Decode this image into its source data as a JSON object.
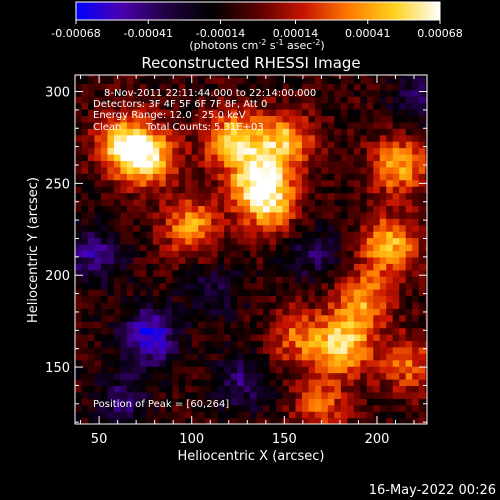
{
  "colorbar": {
    "ticks": [
      "-0.00068",
      "-0.00041",
      "-0.00014",
      "0.00014",
      "0.00041",
      "0.00068"
    ],
    "tick_values": [
      -0.00068,
      -0.00041,
      -0.00014,
      0.00014,
      0.00041,
      0.00068
    ],
    "range": [
      -0.00068,
      0.00068
    ],
    "unit_text": "(photons cm",
    "unit_sup1": "-2",
    "unit_mid": " s",
    "unit_sup2": "-1",
    "unit_mid2": " asec",
    "unit_sup3": "-2",
    "unit_end": ")",
    "colors": [
      "#0000ff",
      "#4b00b0",
      "#200040",
      "#000000",
      "#5a0000",
      "#c81400",
      "#ff7a00",
      "#ffd21e",
      "#ffffff"
    ]
  },
  "chart_data": {
    "type": "heatmap",
    "title": "Reconstructed RHESSI Image",
    "xlabel": "Heliocentric X (arcsec)",
    "ylabel": "Heliocentric Y (arcsec)",
    "xlim": [
      37,
      227
    ],
    "ylim": [
      119,
      309
    ],
    "x_ticks": [
      50,
      100,
      150,
      200
    ],
    "y_ticks": [
      150,
      200,
      250,
      300
    ],
    "value_range": [
      -0.00068,
      0.00068
    ],
    "peak_position": [
      60,
      264
    ],
    "bright_regions": [
      {
        "x": 75,
        "y": 262,
        "level": 0.85
      },
      {
        "x": 120,
        "y": 272,
        "level": 0.82
      },
      {
        "x": 62,
        "y": 270,
        "level": 0.9
      },
      {
        "x": 148,
        "y": 272,
        "level": 0.8
      },
      {
        "x": 135,
        "y": 250,
        "level": 0.95
      },
      {
        "x": 98,
        "y": 225,
        "level": 0.7
      },
      {
        "x": 140,
        "y": 235,
        "level": 0.65
      },
      {
        "x": 210,
        "y": 258,
        "level": 0.75
      },
      {
        "x": 205,
        "y": 215,
        "level": 0.8
      },
      {
        "x": 190,
        "y": 185,
        "level": 0.7
      },
      {
        "x": 180,
        "y": 160,
        "level": 0.9
      },
      {
        "x": 155,
        "y": 165,
        "level": 0.55
      },
      {
        "x": 215,
        "y": 150,
        "level": 0.55
      },
      {
        "x": 168,
        "y": 128,
        "level": 0.5
      }
    ],
    "dark_regions": [
      {
        "x": 75,
        "y": 165,
        "level": -0.8
      },
      {
        "x": 45,
        "y": 210,
        "level": -0.55
      },
      {
        "x": 125,
        "y": 140,
        "level": -0.45
      },
      {
        "x": 110,
        "y": 190,
        "level": -0.35
      },
      {
        "x": 165,
        "y": 210,
        "level": -0.4
      },
      {
        "x": 60,
        "y": 130,
        "level": -0.45
      },
      {
        "x": 220,
        "y": 295,
        "level": -0.35
      }
    ]
  },
  "annotations": {
    "time_range": "8-Nov-2011 22:11:44.000 to 22:14:00.000",
    "detectors": "Detectors: 3F 4F 5F 6F 7F 8F, Att 0",
    "energy": "Energy Range: 12.0 - 25.0 keV",
    "method": "Clean",
    "counts": "Total Counts: 5.31E+03",
    "peak": "Position of Peak = [60,264]"
  },
  "footer": {
    "timestamp": "16-May-2022 00:26"
  }
}
